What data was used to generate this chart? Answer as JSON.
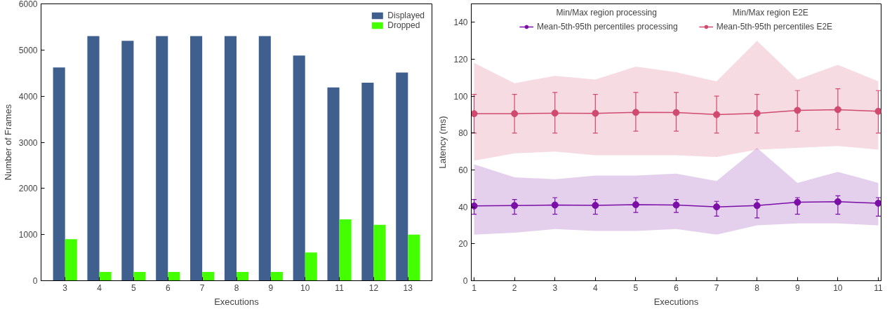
{
  "chart_data": [
    {
      "type": "bar",
      "xlabel": "Executions",
      "ylabel": "Number of Frames",
      "categories": [
        "3",
        "4",
        "5",
        "6",
        "7",
        "8",
        "9",
        "10",
        "11",
        "12",
        "13"
      ],
      "ylim": [
        0,
        6000
      ],
      "yticks": [
        0,
        1000,
        2000,
        3000,
        4000,
        5000,
        6000
      ],
      "legend": "top right",
      "grid": false,
      "series": [
        {
          "name": "Displayed",
          "color": "#3f5f8f",
          "values": [
            4620,
            5300,
            5200,
            5300,
            5300,
            5300,
            5300,
            4880,
            4190,
            4290,
            4510
          ]
        },
        {
          "name": "Dropped",
          "color": "#44ff00",
          "values": [
            900,
            190,
            190,
            190,
            190,
            190,
            190,
            610,
            1330,
            1210,
            1000
          ]
        }
      ]
    },
    {
      "type": "line",
      "xlabel": "Executions",
      "ylabel": "Latency (ms)",
      "x": [
        1,
        2,
        3,
        4,
        5,
        6,
        7,
        8,
        9,
        10,
        11
      ],
      "xlim": [
        0.93,
        11.07
      ],
      "xticks": [
        1,
        2,
        3,
        4,
        5,
        6,
        7,
        8,
        9,
        10,
        11
      ],
      "ylim": [
        0,
        150
      ],
      "yticks": [
        0,
        20,
        40,
        60,
        80,
        100,
        120,
        140
      ],
      "legend": "top",
      "grid": false,
      "marker": "circle",
      "line_style": "solid",
      "annotations": [
        "Min/Max region processing",
        "Min/Max region E2E"
      ],
      "series": [
        {
          "name": "Mean-5th-95th percentiles processing",
          "color": "#7a0ea6",
          "values": [
            40.5,
            40.7,
            41,
            40.8,
            41.2,
            41,
            40,
            40.7,
            42.5,
            42.8,
            42
          ],
          "errors": [
            [
              36,
              44
            ],
            [
              36,
              44
            ],
            [
              36,
              45
            ],
            [
              36,
              44
            ],
            [
              37,
              45
            ],
            [
              37,
              44
            ],
            [
              35,
              43
            ],
            [
              34,
              44
            ],
            [
              36,
              45
            ],
            [
              36,
              46
            ],
            [
              35,
              45
            ]
          ],
          "lower": [
            25,
            26,
            28,
            27,
            27,
            28,
            25,
            30,
            31,
            31,
            30
          ],
          "upper": [
            63,
            56,
            55,
            57,
            57,
            58,
            54,
            72,
            53,
            59,
            53
          ]
        },
        {
          "name": "Mean-5th-95th percentiles E2E",
          "color": "#d04a70",
          "values": [
            90.5,
            90.5,
            90.8,
            90.7,
            91.2,
            91.1,
            90,
            90.7,
            92.3,
            92.7,
            91.8
          ],
          "errors": [
            [
              80,
              101
            ],
            [
              80,
              101
            ],
            [
              80,
              102
            ],
            [
              80,
              101
            ],
            [
              81,
              102
            ],
            [
              81,
              102
            ],
            [
              80,
              100
            ],
            [
              80,
              101
            ],
            [
              81,
              103
            ],
            [
              82,
              104
            ],
            [
              80,
              103
            ]
          ],
          "lower": [
            65,
            69,
            70,
            68,
            68,
            68,
            67,
            71,
            72,
            73,
            71
          ],
          "upper": [
            118,
            107,
            111,
            109,
            116,
            113,
            108,
            130,
            109,
            117,
            108
          ]
        }
      ]
    }
  ]
}
